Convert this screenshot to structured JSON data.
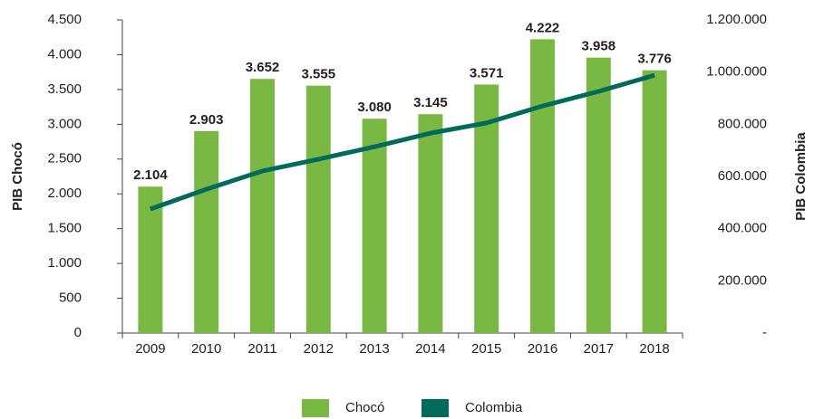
{
  "chart_data": {
    "type": "bar",
    "categories": [
      "2009",
      "2010",
      "2011",
      "2012",
      "2013",
      "2014",
      "2015",
      "2016",
      "2017",
      "2018"
    ],
    "series": [
      {
        "name": "Chocó",
        "type": "bar",
        "color": "#7ab844",
        "values": [
          2104,
          2903,
          3652,
          3555,
          3080,
          3145,
          3571,
          4222,
          3958,
          3776
        ],
        "value_labels": [
          "2.104",
          "2.903",
          "3.652",
          "3.555",
          "3.080",
          "3.145",
          "3.571",
          "4.222",
          "3.958",
          "3.776"
        ]
      },
      {
        "name": "Colombia",
        "type": "line",
        "axis": "y2",
        "color": "#006a5b",
        "values": [
          475000,
          551000,
          621000,
          666000,
          714000,
          766000,
          805000,
          870000,
          926000,
          988000
        ]
      }
    ],
    "ylabel": "PIB Chocó",
    "y2label": "PIB Colombia",
    "ylim": [
      0,
      4500
    ],
    "yticks": [
      0,
      500,
      {
        "value": 1000,
        "label": "1.000"
      },
      {
        "value": 1500,
        "label": "1.500"
      },
      {
        "value": 2000,
        "label": "2.000"
      },
      {
        "value": 2500,
        "label": "2.500"
      },
      {
        "value": 3000,
        "label": "3.000"
      },
      {
        "value": 3500,
        "label": "3.500"
      },
      {
        "value": 4000,
        "label": "4.000"
      },
      {
        "value": 4500,
        "label": "4.500"
      }
    ],
    "y2lim": [
      0,
      1200000
    ],
    "y2ticks": [
      {
        "value": 0,
        "label": "-"
      },
      {
        "value": 200000,
        "label": "200.000"
      },
      {
        "value": 400000,
        "label": "400.000"
      },
      {
        "value": 600000,
        "label": "600.000"
      },
      {
        "value": 800000,
        "label": "800.000"
      },
      {
        "value": 1000000,
        "label": "1.000.000"
      },
      {
        "value": 1200000,
        "label": "1.200.000"
      }
    ],
    "grid": false,
    "legend": "bottom"
  }
}
